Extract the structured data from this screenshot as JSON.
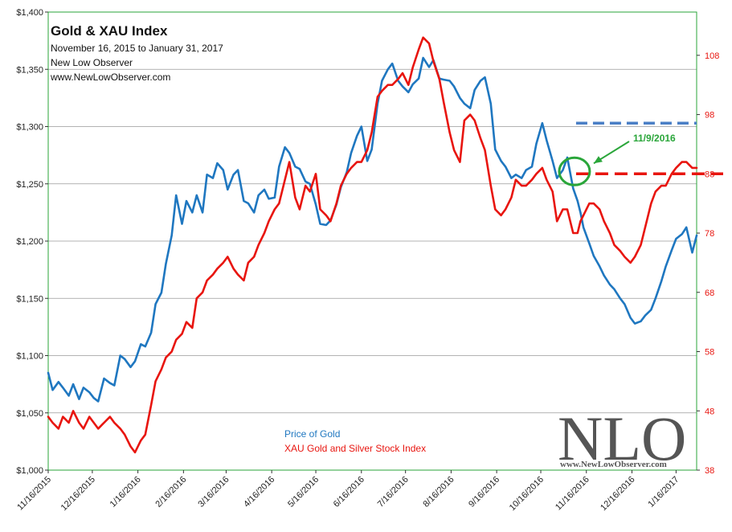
{
  "chart_data": {
    "type": "line",
    "title": "Gold & XAU Index",
    "subtitle_lines": [
      "November 16, 2015  to January 31, 2017",
      "New Low Observer",
      "www.NewLowObserver.com"
    ],
    "left_axis": {
      "ylim": [
        1000,
        1400
      ],
      "ticks": [
        1000,
        1050,
        1100,
        1150,
        1200,
        1250,
        1300,
        1350,
        1400
      ],
      "tick_labels": [
        "$1,000",
        "$1,050",
        "$1,100",
        "$1,150",
        "$1,200",
        "$1,250",
        "$1,300",
        "$1,350",
        "$1,400"
      ]
    },
    "right_axis": {
      "ylim": [
        38,
        115.3
      ],
      "ticks": [
        38,
        48,
        58,
        68,
        78,
        88,
        98,
        108
      ],
      "tick_labels": [
        "38",
        "48",
        "58",
        "68",
        "78",
        "88",
        "98",
        "108"
      ]
    },
    "x_axis": {
      "range_days": [
        0,
        441
      ],
      "tick_days": [
        0,
        30,
        61,
        92,
        121,
        152,
        182,
        213,
        243,
        274,
        305,
        335,
        366,
        397,
        427
      ],
      "tick_labels": [
        "11/16/2015",
        "12/16/2015",
        "1/16/2016",
        "2/16/2016",
        "3/16/2016",
        "4/16/2016",
        "5/16/2016",
        "6/16/2016",
        "7/16/2016",
        "8/16/2016",
        "9/16/2016",
        "10/16/2016",
        "11/16/2016",
        "12/16/2016",
        "1/16/2017"
      ]
    },
    "series": [
      {
        "name": "Price of Gold",
        "axis": "left",
        "color": "#1f77c0",
        "x": [
          0,
          3,
          7,
          10,
          14,
          17,
          21,
          24,
          28,
          31,
          34,
          38,
          42,
          45,
          49,
          52,
          56,
          59,
          63,
          66,
          70,
          73,
          77,
          80,
          84,
          87,
          91,
          94,
          98,
          101,
          105,
          108,
          112,
          115,
          119,
          122,
          126,
          129,
          133,
          136,
          140,
          143,
          147,
          150,
          154,
          157,
          161,
          164,
          168,
          171,
          175,
          178,
          182,
          185,
          189,
          192,
          196,
          199,
          203,
          206,
          210,
          213,
          217,
          220,
          224,
          227,
          231,
          234,
          238,
          241,
          245,
          248,
          252,
          255,
          259,
          262,
          266,
          269,
          273,
          276,
          280,
          283,
          287,
          290,
          294,
          297,
          301,
          304,
          308,
          311,
          315,
          318,
          322,
          325,
          329,
          332,
          336,
          339,
          343,
          346,
          350,
          353,
          357,
          360,
          362,
          364,
          368,
          371,
          375,
          378,
          382,
          385,
          389,
          392,
          396,
          399,
          403,
          406,
          410,
          413,
          417,
          420,
          424,
          427,
          431,
          434,
          438,
          441
        ],
        "values": [
          1085,
          1070,
          1077,
          1072,
          1065,
          1075,
          1062,
          1072,
          1068,
          1063,
          1060,
          1080,
          1076,
          1074,
          1100,
          1097,
          1090,
          1095,
          1110,
          1108,
          1120,
          1145,
          1155,
          1180,
          1205,
          1240,
          1215,
          1235,
          1225,
          1240,
          1225,
          1258,
          1255,
          1268,
          1262,
          1245,
          1258,
          1262,
          1235,
          1233,
          1225,
          1240,
          1245,
          1237,
          1238,
          1265,
          1282,
          1277,
          1265,
          1263,
          1252,
          1250,
          1232,
          1215,
          1214,
          1218,
          1232,
          1247,
          1260,
          1277,
          1292,
          1300,
          1270,
          1280,
          1320,
          1340,
          1350,
          1355,
          1340,
          1335,
          1330,
          1337,
          1342,
          1360,
          1352,
          1358,
          1342,
          1341,
          1340,
          1335,
          1325,
          1320,
          1316,
          1332,
          1340,
          1343,
          1320,
          1280,
          1270,
          1265,
          1255,
          1258,
          1255,
          1262,
          1265,
          1285,
          1303,
          1288,
          1270,
          1255,
          1262,
          1273,
          1246,
          1235,
          1225,
          1212,
          1198,
          1187,
          1178,
          1170,
          1162,
          1158,
          1150,
          1145,
          1133,
          1128,
          1130,
          1135,
          1140,
          1150,
          1165,
          1178,
          1192,
          1202,
          1206,
          1212,
          1190,
          1205
        ]
      },
      {
        "name": "XAU Gold and Silver Stock Index",
        "axis": "right",
        "color": "#e8150f",
        "x": [
          0,
          3,
          7,
          10,
          14,
          17,
          21,
          24,
          28,
          31,
          34,
          38,
          42,
          45,
          49,
          52,
          56,
          59,
          63,
          66,
          70,
          73,
          77,
          80,
          84,
          87,
          91,
          94,
          98,
          101,
          105,
          108,
          112,
          115,
          119,
          122,
          126,
          129,
          133,
          136,
          140,
          143,
          147,
          150,
          154,
          157,
          161,
          164,
          168,
          171,
          175,
          178,
          182,
          185,
          189,
          192,
          196,
          199,
          203,
          206,
          210,
          213,
          217,
          220,
          224,
          227,
          231,
          234,
          238,
          241,
          245,
          248,
          252,
          255,
          259,
          262,
          266,
          269,
          273,
          276,
          280,
          283,
          287,
          290,
          294,
          297,
          301,
          304,
          308,
          311,
          315,
          318,
          322,
          325,
          329,
          332,
          336,
          339,
          343,
          346,
          350,
          353,
          357,
          360,
          362,
          364,
          368,
          371,
          375,
          378,
          382,
          385,
          389,
          392,
          396,
          399,
          403,
          406,
          410,
          413,
          417,
          420,
          424,
          427,
          431,
          434,
          438,
          441
        ],
        "values": [
          47,
          46,
          45,
          47,
          46,
          48,
          46,
          45,
          47,
          46,
          45,
          46,
          47,
          46,
          45,
          44,
          42,
          41,
          43,
          44,
          49,
          53,
          55,
          57,
          58,
          60,
          61,
          63,
          62,
          67,
          68,
          70,
          71,
          72,
          73,
          74,
          72,
          71,
          70,
          73,
          74,
          76,
          78,
          80,
          82,
          83,
          87,
          90,
          84,
          82,
          86,
          85,
          88,
          82,
          81,
          80,
          83,
          86,
          88,
          89,
          90,
          90,
          92,
          95,
          101,
          102,
          103,
          103,
          104,
          105,
          103,
          106,
          109,
          111,
          110,
          107,
          104,
          100,
          95,
          92,
          90,
          97,
          98,
          97,
          94,
          92,
          86,
          82,
          81,
          82,
          84,
          87,
          86,
          86,
          87,
          88,
          89,
          87,
          85,
          80,
          82,
          82,
          78,
          78,
          80,
          81,
          83,
          83,
          82,
          80,
          78,
          76,
          75,
          74,
          73,
          74,
          76,
          79,
          83,
          85,
          86,
          86,
          88,
          89,
          90,
          90,
          89,
          89
        ]
      }
    ],
    "legend": [
      "Price of Gold",
      "XAU Gold and Silver Stock Index"
    ],
    "annotations": {
      "date_label": "11/9/2016",
      "circle_at_day": 359,
      "gold_level_line": 1303,
      "xau_level_line": 88
    },
    "watermark": {
      "text": "NLO",
      "url": "www.NewLowObserver.com"
    },
    "colors": {
      "gold": "#1f77c0",
      "xau": "#e8150f",
      "annotation": "#2aa63a",
      "plot_border": "#2aa63a",
      "blue_dash": "#4a7fc6"
    },
    "grid": true
  }
}
